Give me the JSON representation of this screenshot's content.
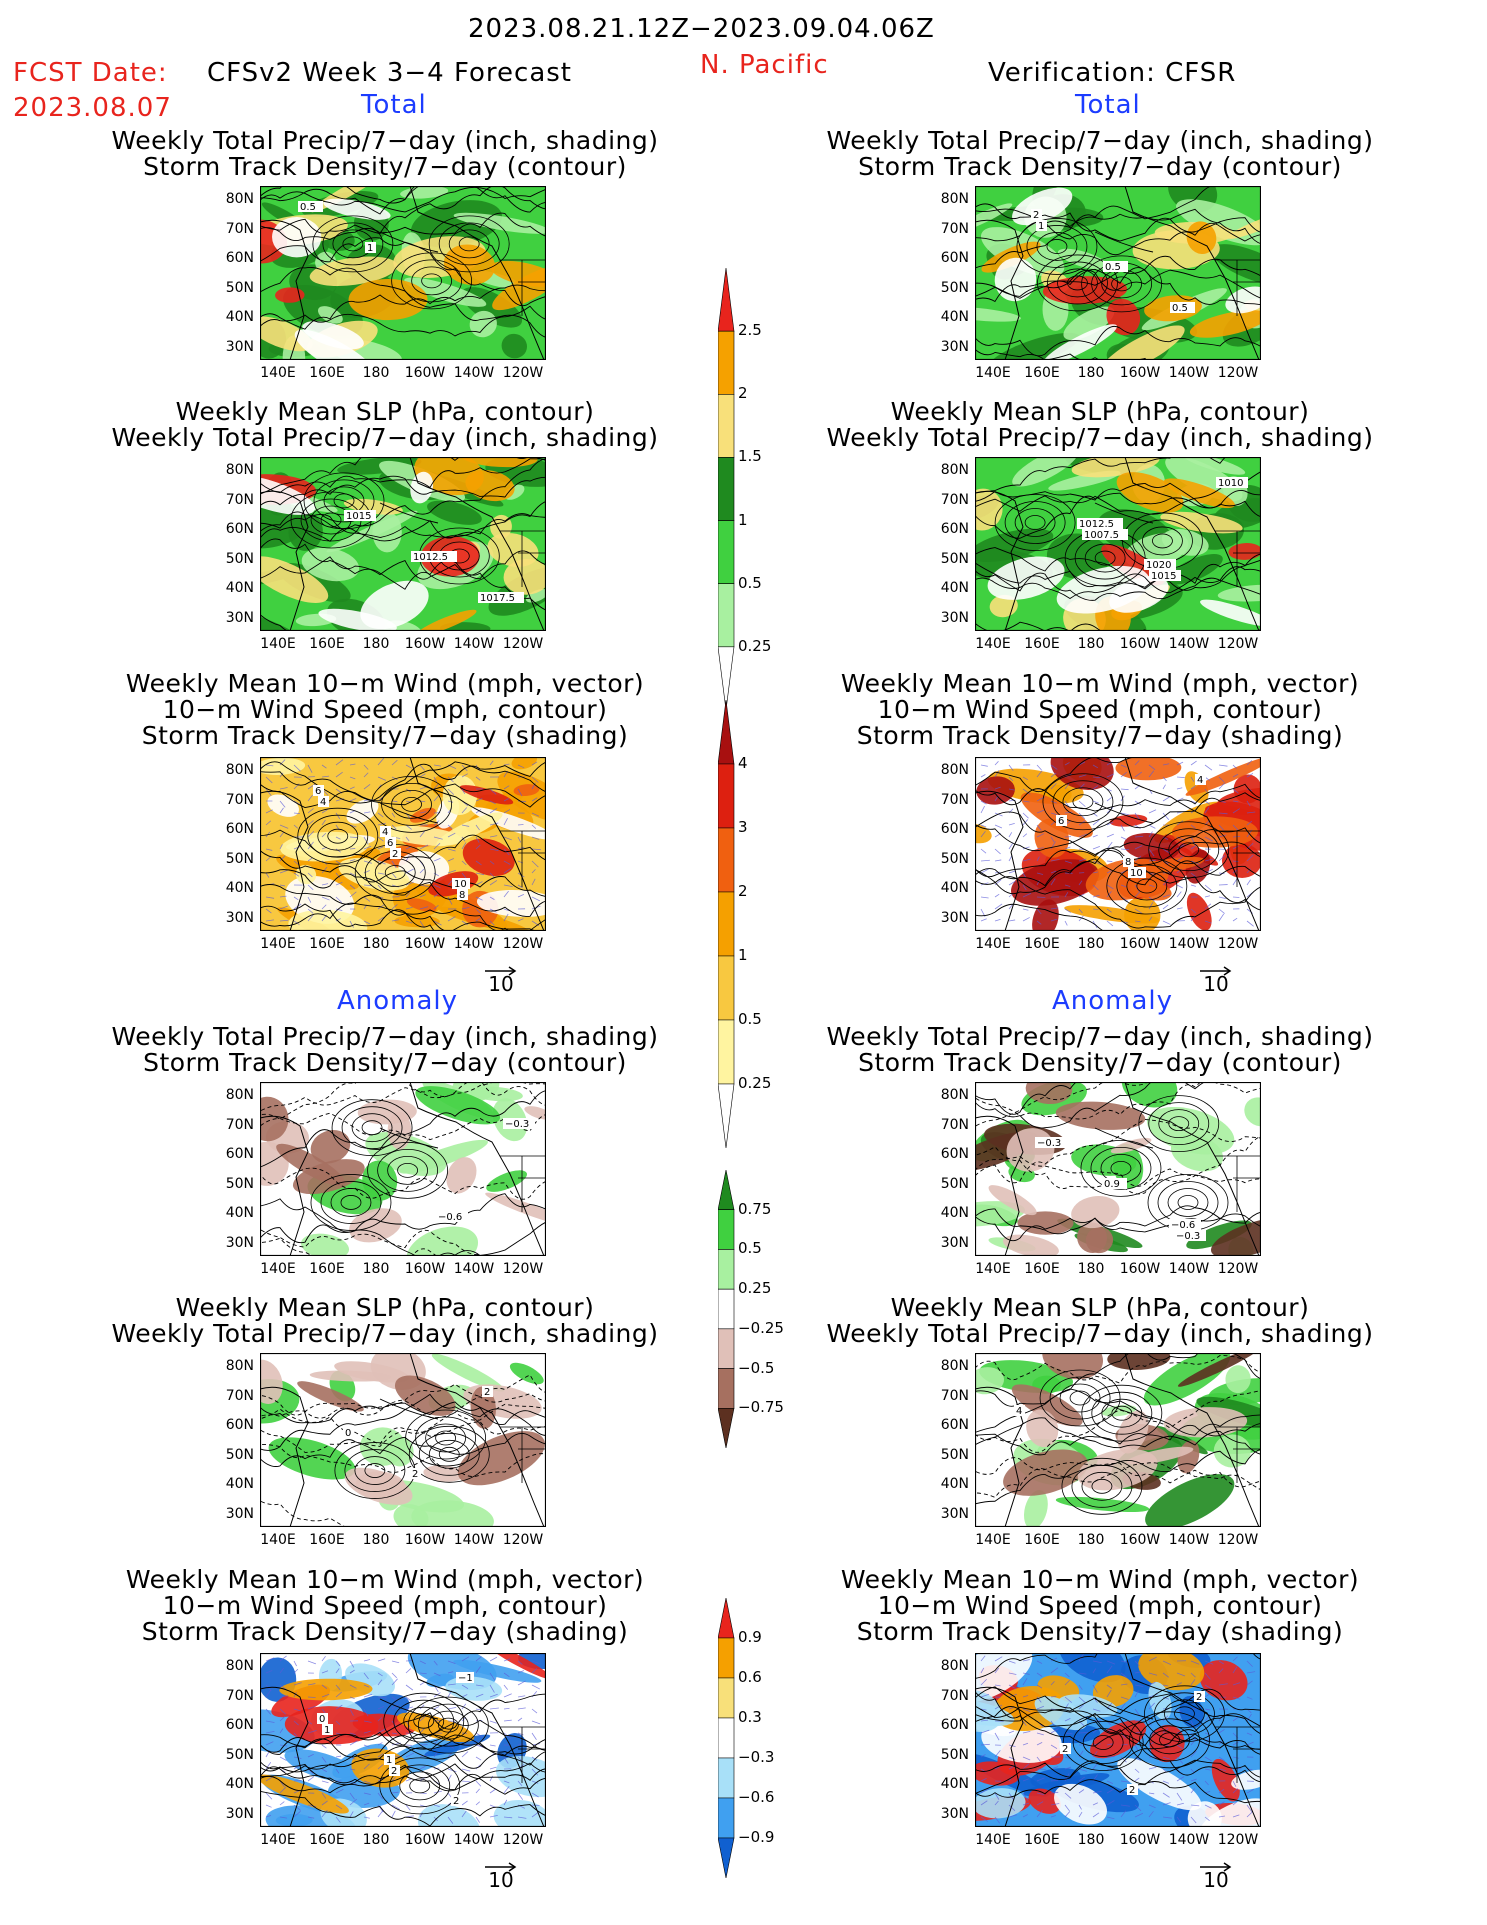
{
  "header": {
    "date_range": "2023.08.21.12Z−2023.09.04.06Z",
    "fcst_label": "FCST Date:",
    "fcst_date": "2023.08.07",
    "model": "CFSv2 Week 3−4 Forecast",
    "region": "N. Pacific",
    "verification": "Verification: CFSR"
  },
  "sections": {
    "total_left": "Total",
    "total_right": "Total",
    "anomaly_left": "Anomaly",
    "anomaly_right": "Anomaly"
  },
  "titles": {
    "precip_track": [
      "Weekly Total Precip/7−day (inch, shading)",
      "Storm Track Density/7−day (contour)"
    ],
    "slp_precip": [
      "Weekly Mean SLP (hPa, contour)",
      "Weekly Total Precip/7−day (inch, shading)"
    ],
    "wind_track": [
      "Weekly Mean 10−m Wind (mph, vector)",
      "10−m Wind Speed (mph, contour)",
      "Storm Track Density/7−day (shading)"
    ]
  },
  "axes": {
    "lat_ticks": [
      "80N",
      "70N",
      "60N",
      "50N",
      "40N",
      "30N"
    ],
    "lon_ticks": [
      "140E",
      "160E",
      "180",
      "160W",
      "140W",
      "120W"
    ]
  },
  "reference_vector": "10",
  "colorbars": {
    "precip_total": {
      "labels": [
        "2.5",
        "2",
        "1.5",
        "1",
        "0.5",
        "0.25"
      ],
      "colors": [
        "#e8241d",
        "#f5a100",
        "#f8e07a",
        "#1f8a1f",
        "#40d040",
        "#a8f0a0"
      ]
    },
    "track_total": {
      "labels": [
        "4",
        "3",
        "2",
        "1",
        "0.5",
        "0.25"
      ],
      "colors": [
        "#a81010",
        "#dd2010",
        "#f06010",
        "#f5a000",
        "#f8c840",
        "#fff4a0"
      ]
    },
    "precip_anom": {
      "labels": [
        "0.75",
        "0.5",
        "0.25",
        "−0.25",
        "−0.5",
        "−0.75"
      ],
      "colors": [
        "#1f8a1f",
        "#40d040",
        "#a8f0a0",
        "#ffffff",
        "#e0c0b8",
        "#a67060",
        "#5c3020"
      ]
    },
    "track_anom": {
      "labels": [
        "0.9",
        "0.6",
        "0.3",
        "−0.3",
        "−0.6",
        "−0.9"
      ],
      "colors": [
        "#e8241d",
        "#f5a000",
        "#f8e07a",
        "#ffffff",
        "#a8e0f8",
        "#40a0f0",
        "#1060d0"
      ]
    }
  },
  "panels": [
    {
      "id": "l1",
      "contour_labels": [
        "0.5",
        "1"
      ]
    },
    {
      "id": "r1",
      "contour_labels": [
        "1",
        "0.5",
        "0.5",
        "2"
      ]
    },
    {
      "id": "l2",
      "contour_labels": [
        "1015",
        "1012.5",
        "1017.5"
      ]
    },
    {
      "id": "r2",
      "contour_labels": [
        "1007.5",
        "1015",
        "1010",
        "1012.5",
        "1020"
      ]
    },
    {
      "id": "l3",
      "contour_labels": [
        "2",
        "8",
        "4",
        "6",
        "10",
        "6",
        "4"
      ]
    },
    {
      "id": "r3",
      "contour_labels": [
        "10",
        "4",
        "6",
        "8"
      ]
    },
    {
      "id": "l4",
      "contour_labels": [
        "−0.6",
        "−0.3"
      ]
    },
    {
      "id": "r4",
      "contour_labels": [
        "−0.3",
        "−0.3",
        "0.9",
        "−0.6"
      ]
    },
    {
      "id": "l5",
      "contour_labels": [
        "2",
        "0",
        "2"
      ]
    },
    {
      "id": "r5",
      "contour_labels": [
        "4"
      ]
    },
    {
      "id": "l6",
      "contour_labels": [
        "1",
        "2",
        "−1",
        "0",
        "1",
        "2"
      ]
    },
    {
      "id": "r6",
      "contour_labels": [
        "2",
        "2",
        "2"
      ]
    }
  ]
}
